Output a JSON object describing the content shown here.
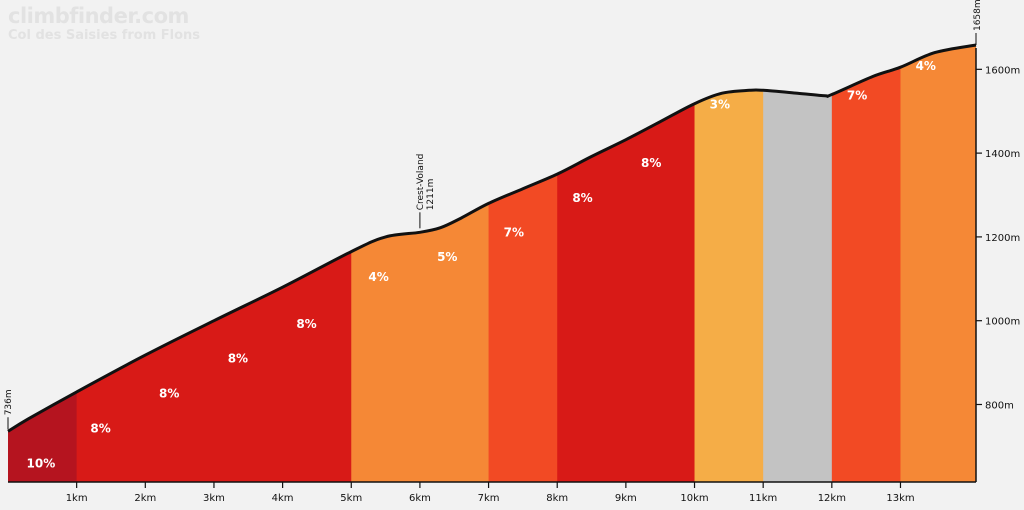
{
  "header": {
    "brand": "climbfinder.com",
    "subtitle": "Col des Saisies from Flons"
  },
  "colors": {
    "background": "#f2f2f2",
    "profile_line": "#111111",
    "grade_10": "#b5141f",
    "grade_8": "#d81a17",
    "grade_7": "#f24a24",
    "grade_5": "#f58836",
    "grade_4": "#f58836",
    "grade_3": "#f5ad47",
    "grade_flat": "#c3c3c3"
  },
  "chart_data": {
    "type": "area",
    "xunit": "km",
    "yunit": "m",
    "xlim": [
      0,
      14.1
    ],
    "ylim": [
      615,
      1670
    ],
    "x_ticks": [
      1,
      2,
      3,
      4,
      5,
      6,
      7,
      8,
      9,
      10,
      11,
      12,
      13
    ],
    "x_tick_labels": [
      "1km",
      "2km",
      "3km",
      "4km",
      "5km",
      "6km",
      "7km",
      "8km",
      "9km",
      "10km",
      "11km",
      "12km",
      "13km"
    ],
    "y_ticks": [
      800,
      1000,
      1200,
      1400,
      1600
    ],
    "y_tick_labels": [
      "800m",
      "1000m",
      "1200m",
      "1400m",
      "1600m"
    ],
    "profile": [
      {
        "x": 0,
        "y": 736
      },
      {
        "x": 0.3,
        "y": 766
      },
      {
        "x": 1,
        "y": 830
      },
      {
        "x": 2,
        "y": 918
      },
      {
        "x": 3,
        "y": 1000
      },
      {
        "x": 4,
        "y": 1080
      },
      {
        "x": 5,
        "y": 1165
      },
      {
        "x": 5.5,
        "y": 1200
      },
      {
        "x": 6,
        "y": 1211
      },
      {
        "x": 6.3,
        "y": 1222
      },
      {
        "x": 6.6,
        "y": 1245
      },
      {
        "x": 7,
        "y": 1280
      },
      {
        "x": 7.5,
        "y": 1315
      },
      {
        "x": 8,
        "y": 1350
      },
      {
        "x": 8.5,
        "y": 1392
      },
      {
        "x": 9,
        "y": 1432
      },
      {
        "x": 9.5,
        "y": 1475
      },
      {
        "x": 10,
        "y": 1518
      },
      {
        "x": 10.4,
        "y": 1543
      },
      {
        "x": 10.8,
        "y": 1550
      },
      {
        "x": 11,
        "y": 1550
      },
      {
        "x": 11.5,
        "y": 1543
      },
      {
        "x": 11.9,
        "y": 1537
      },
      {
        "x": 12,
        "y": 1540
      },
      {
        "x": 12.6,
        "y": 1583
      },
      {
        "x": 13,
        "y": 1605
      },
      {
        "x": 13.5,
        "y": 1640
      },
      {
        "x": 14.1,
        "y": 1658
      }
    ],
    "segments": [
      {
        "from": 0,
        "to": 1,
        "grade": "10%",
        "color": "#b5141f"
      },
      {
        "from": 1,
        "to": 5,
        "grade": "8%",
        "color": "#d81a17"
      },
      {
        "from": 5,
        "to": 7,
        "grade": "4%",
        "color": "#f58836"
      },
      {
        "from": 7,
        "to": 8,
        "grade": "7%",
        "color": "#f24a24"
      },
      {
        "from": 8,
        "to": 10,
        "grade": "8%",
        "color": "#d81a17"
      },
      {
        "from": 10,
        "to": 11,
        "grade": "3%",
        "color": "#f5ad47"
      },
      {
        "from": 11,
        "to": 12,
        "grade": "",
        "color": "#c3c3c3"
      },
      {
        "from": 12,
        "to": 13,
        "grade": "7%",
        "color": "#f24a24"
      },
      {
        "from": 13,
        "to": 14.1,
        "grade": "4%",
        "color": "#f58836"
      }
    ],
    "grade_labels": [
      {
        "x": 0.27,
        "y": 650,
        "text": "10%"
      },
      {
        "x": 1.2,
        "y": 733,
        "text": "8%"
      },
      {
        "x": 2.2,
        "y": 817,
        "text": "8%"
      },
      {
        "x": 3.2,
        "y": 900,
        "text": "8%"
      },
      {
        "x": 4.2,
        "y": 982,
        "text": "8%"
      },
      {
        "x": 5.25,
        "y": 1095,
        "text": "4%"
      },
      {
        "x": 6.25,
        "y": 1142,
        "text": "5%"
      },
      {
        "x": 7.22,
        "y": 1201,
        "text": "7%"
      },
      {
        "x": 8.22,
        "y": 1283,
        "text": "8%"
      },
      {
        "x": 9.22,
        "y": 1367,
        "text": "8%"
      },
      {
        "x": 10.22,
        "y": 1506,
        "text": "3%"
      },
      {
        "x": 12.22,
        "y": 1528,
        "text": "7%"
      },
      {
        "x": 13.22,
        "y": 1598,
        "text": "4%"
      }
    ],
    "annotations": [
      {
        "x": 0,
        "y": 736,
        "text": "736m"
      },
      {
        "x": 6,
        "y": 1211,
        "text": "Crest-Voland",
        "sub": "1211m"
      },
      {
        "x": 14.1,
        "y": 1658,
        "text": "1658m"
      }
    ]
  }
}
